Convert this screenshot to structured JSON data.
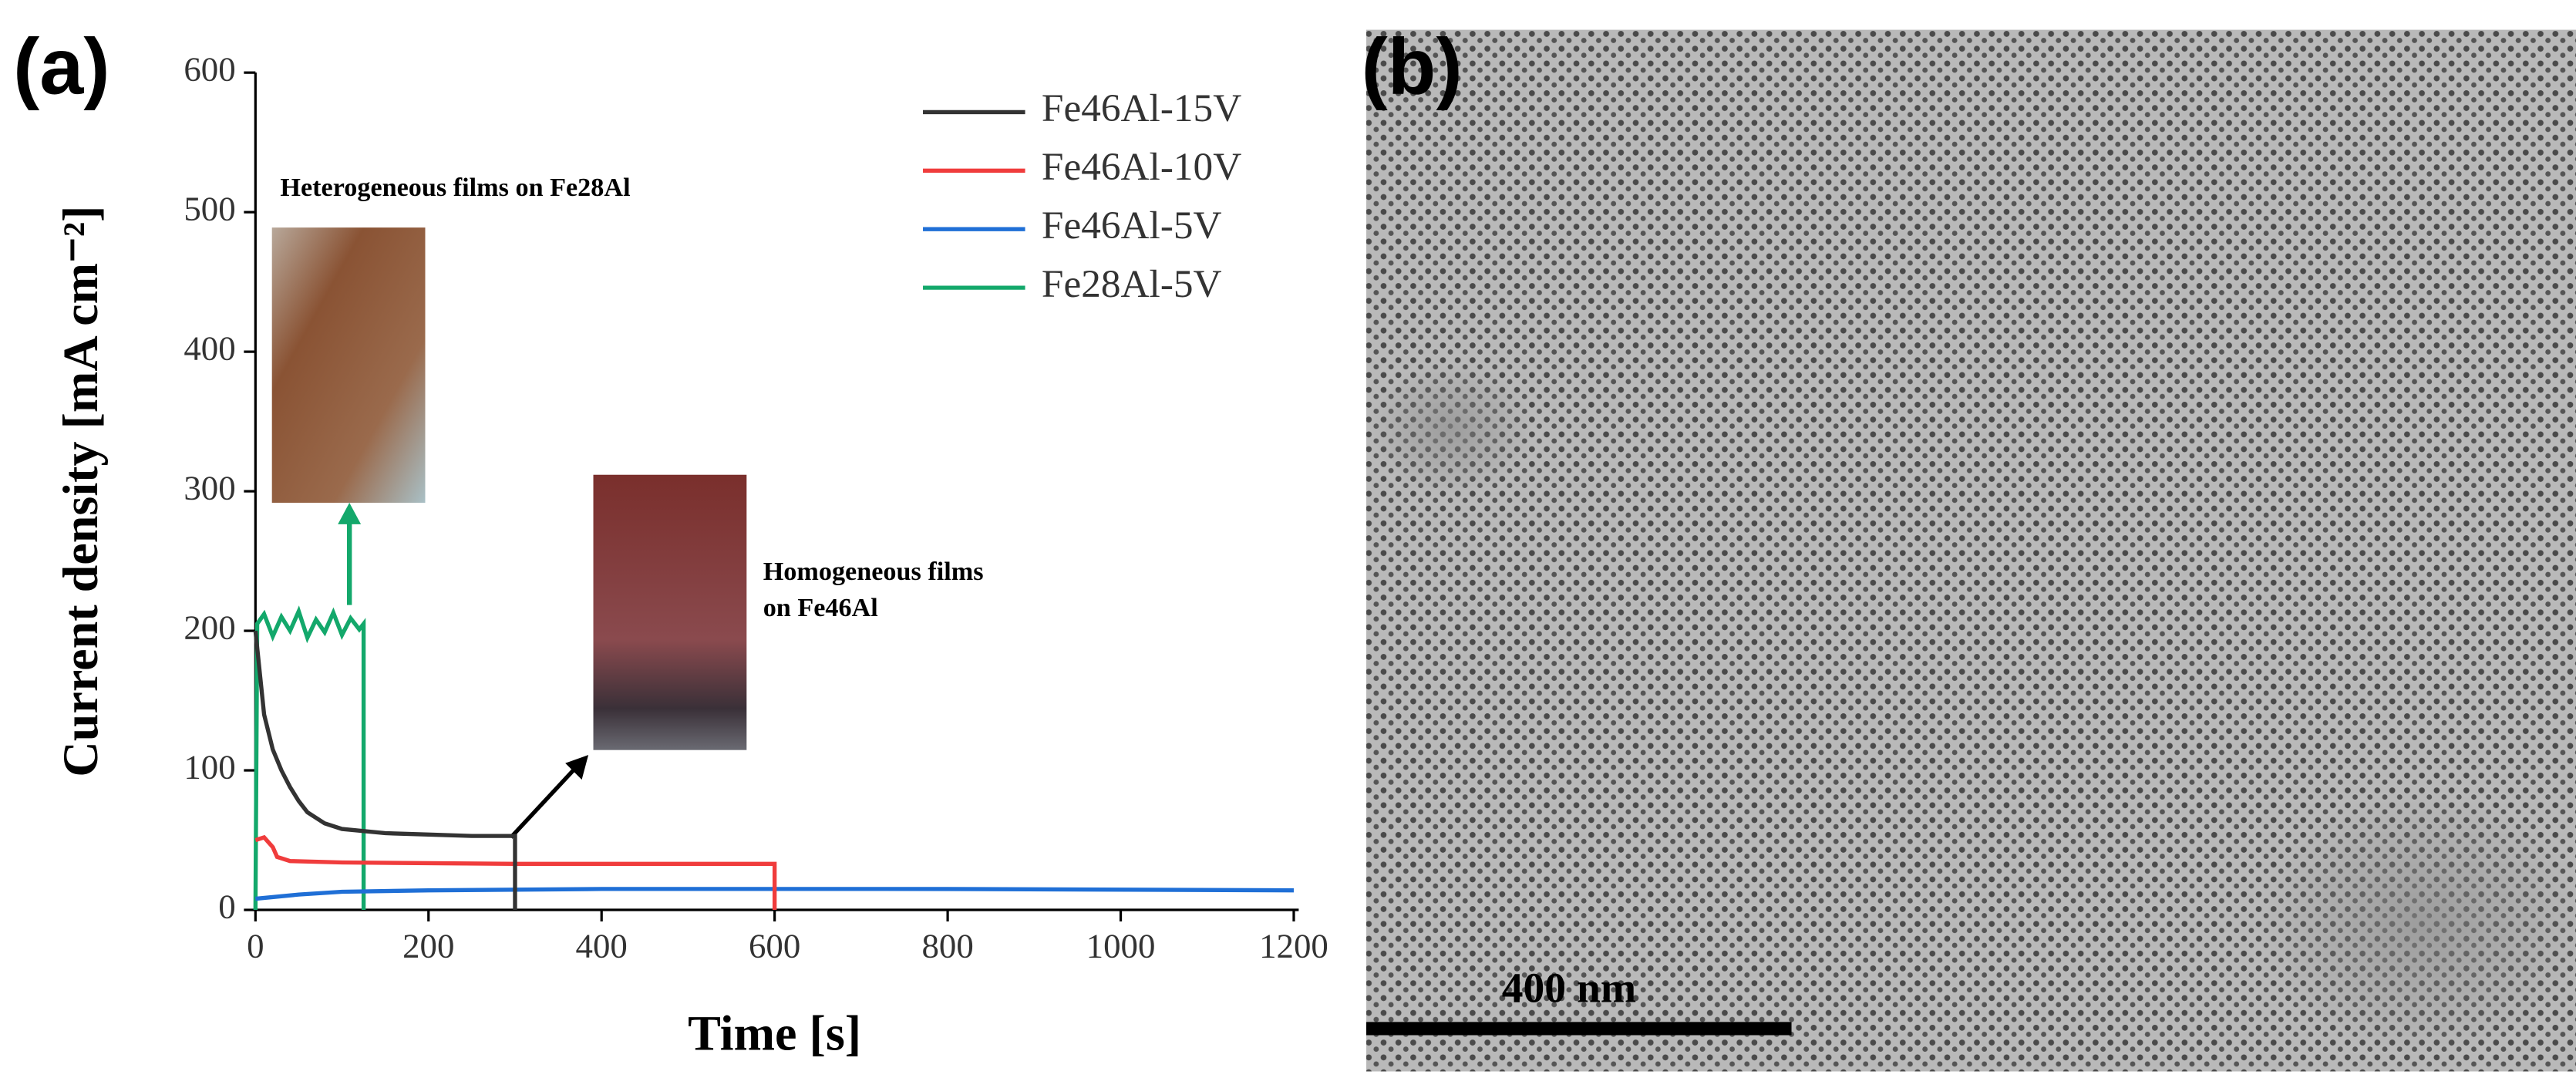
{
  "panels": [
    "(a)",
    "(b)"
  ],
  "scale_bar": "400 nm",
  "chart_data": {
    "type": "line",
    "xlabel": "Time [s]",
    "ylabel": "Current density [mA cm⁻²]",
    "xlim": [
      0,
      1200
    ],
    "xticks": [
      0,
      200,
      400,
      600,
      800,
      1000,
      1200
    ],
    "ylim": [
      0,
      600
    ],
    "yticks": [
      0,
      100,
      200,
      300,
      400,
      500,
      600
    ],
    "legend": "upper right",
    "annotations": [
      "Heterogeneous films on Fe28Al",
      "Homogeneous films",
      "on Fe46Al"
    ],
    "series": [
      {
        "name": "Fe46Al-15V",
        "color": "#333333",
        "x": [
          0,
          5,
          10,
          20,
          30,
          40,
          50,
          60,
          80,
          100,
          150,
          200,
          250,
          300,
          300
        ],
        "values": [
          200,
          170,
          140,
          115,
          100,
          88,
          78,
          70,
          62,
          58,
          55,
          54,
          53,
          53,
          0
        ]
      },
      {
        "name": "Fe46Al-10V",
        "color": "#f03c3c",
        "x": [
          0,
          10,
          20,
          25,
          40,
          100,
          300,
          600,
          600
        ],
        "values": [
          50,
          52,
          45,
          38,
          35,
          34,
          33,
          33,
          0
        ]
      },
      {
        "name": "Fe46Al-5V",
        "color": "#1f6fd6",
        "x": [
          0,
          50,
          100,
          200,
          400,
          800,
          1200
        ],
        "values": [
          8,
          11,
          13,
          14,
          15,
          15,
          14
        ]
      },
      {
        "name": "Fe28Al-5V",
        "color": "#13a86b",
        "x": [
          0,
          2,
          10,
          20,
          30,
          40,
          50,
          60,
          70,
          80,
          90,
          100,
          110,
          120,
          125,
          125
        ],
        "values": [
          0,
          205,
          212,
          196,
          210,
          200,
          214,
          195,
          208,
          199,
          213,
          197,
          209,
          201,
          205,
          0
        ]
      }
    ]
  }
}
